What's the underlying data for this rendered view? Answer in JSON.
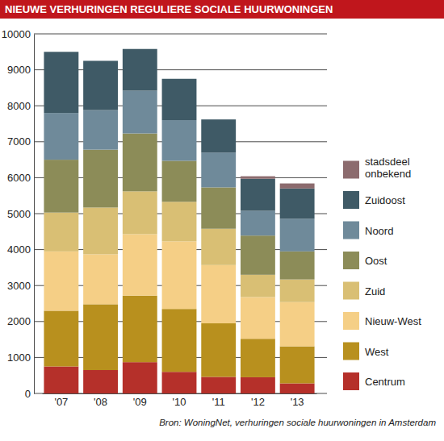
{
  "chart_data": {
    "type": "bar",
    "title": "NIEUWE VERHURINGEN REGULIERE SOCIALE HUURWONINGEN",
    "source": "Bron: WoningNet, verhuringen sociale huurwoningen in Amsterdam",
    "categories": [
      "'07",
      "'08",
      "'09",
      "'10",
      "'11",
      "'12",
      "'13"
    ],
    "series": [
      {
        "name": "Centrum",
        "color": "#b5302a",
        "values": [
          750,
          650,
          870,
          600,
          460,
          450,
          280
        ]
      },
      {
        "name": "West",
        "color": "#b8901e",
        "values": [
          1550,
          1830,
          1850,
          1750,
          1490,
          1070,
          1030
        ]
      },
      {
        "name": "Nieuw-West",
        "color": "#f5cf86",
        "values": [
          1650,
          1390,
          1710,
          1880,
          1620,
          1160,
          1230
        ]
      },
      {
        "name": "Zuid",
        "color": "#d9bf74",
        "values": [
          1080,
          1300,
          1190,
          1100,
          1010,
          620,
          630
        ]
      },
      {
        "name": "Oost",
        "color": "#8c8c58",
        "values": [
          1470,
          1610,
          1610,
          1140,
          1150,
          1090,
          780
        ]
      },
      {
        "name": "Noord",
        "color": "#6f8a9a",
        "values": [
          1300,
          1100,
          1190,
          1130,
          970,
          690,
          910
        ]
      },
      {
        "name": "Zuidoost",
        "color": "#3f5a66",
        "values": [
          1700,
          1370,
          1160,
          1150,
          920,
          890,
          840
        ]
      },
      {
        "name": "stadsdeel onbekend",
        "color": "#8c6b6e",
        "values": [
          0,
          0,
          0,
          0,
          0,
          70,
          140
        ]
      }
    ],
    "ylim": [
      0,
      10000
    ],
    "yticks": [
      0,
      1000,
      2000,
      3000,
      4000,
      5000,
      6000,
      7000,
      8000,
      9000,
      10000
    ],
    "stacked": true,
    "grid": true,
    "legend": "right"
  }
}
